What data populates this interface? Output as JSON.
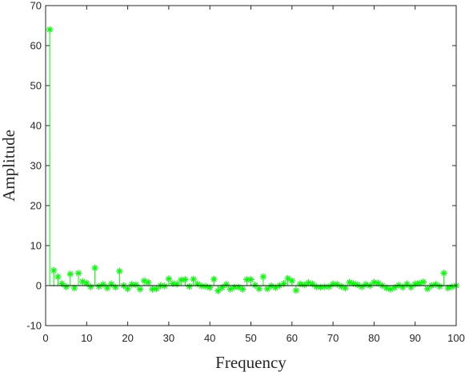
{
  "chart_data": {
    "type": "stem",
    "title": "",
    "xlabel": "Frequency",
    "ylabel": "Amplitude",
    "xlim": [
      0,
      100
    ],
    "ylim": [
      -10,
      70
    ],
    "xticks": [
      0,
      10,
      20,
      30,
      40,
      50,
      60,
      70,
      80,
      90,
      100
    ],
    "yticks": [
      -10,
      0,
      10,
      20,
      30,
      40,
      50,
      60,
      70
    ],
    "marker": "*",
    "series_color": "#00ff00",
    "baseline": 0,
    "grid": false,
    "x": [
      1,
      2,
      3,
      4,
      5,
      6,
      7,
      8,
      9,
      10,
      11,
      12,
      13,
      14,
      15,
      16,
      17,
      18,
      19,
      20,
      21,
      22,
      23,
      24,
      25,
      26,
      27,
      28,
      29,
      30,
      31,
      32,
      33,
      34,
      35,
      36,
      37,
      38,
      39,
      40,
      41,
      42,
      43,
      44,
      45,
      46,
      47,
      48,
      49,
      50,
      51,
      52,
      53,
      54,
      55,
      56,
      57,
      58,
      59,
      60,
      61,
      62,
      63,
      64,
      65,
      66,
      67,
      68,
      69,
      70,
      71,
      72,
      73,
      74,
      75,
      76,
      77,
      78,
      79,
      80,
      81,
      82,
      83,
      84,
      85,
      86,
      87,
      88,
      89,
      90,
      91,
      92,
      93,
      94,
      95,
      96,
      97,
      98,
      99,
      100
    ],
    "y": [
      64,
      3.8,
      2.2,
      0.5,
      -0.3,
      2.9,
      -0.6,
      3.1,
      1,
      0.6,
      -0.3,
      4.4,
      -0.2,
      0.3,
      -0.6,
      0.4,
      -0.4,
      3.6,
      0,
      -0.8,
      0.3,
      0.2,
      -0.9,
      1.2,
      0.8,
      -0.9,
      -0.8,
      0,
      -0.1,
      1.7,
      0.5,
      0.4,
      1.4,
      1.5,
      -0.2,
      1.6,
      0.4,
      -0.1,
      -0.2,
      -0.5,
      1.6,
      -1.3,
      -0.5,
      0.3,
      -0.9,
      -0.4,
      -0.4,
      -0.9,
      1.5,
      1.5,
      0.1,
      -0.8,
      2.2,
      -0.8,
      -0.1,
      -0.5,
      0,
      0.5,
      1.8,
      1.2,
      -1.2,
      0.4,
      0.2,
      0.7,
      0.4,
      -0.3,
      -0.4,
      -0.3,
      -0.3,
      0.4,
      0.3,
      -0.2,
      -0.6,
      0.8,
      0.5,
      0.2,
      -0.3,
      0.3,
      0,
      0.8,
      0.6,
      0,
      -0.6,
      -0.9,
      -0.5,
      0.1,
      -0.4,
      0.4,
      -0.4,
      0.4,
      0.6,
      0.9,
      -0.8,
      0,
      0.3,
      -0.2,
      3.1,
      -0.6,
      -0.3,
      0
    ]
  }
}
